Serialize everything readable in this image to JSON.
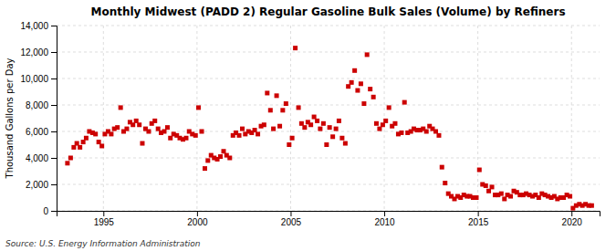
{
  "chart_data": {
    "type": "scatter",
    "title": "Monthly Midwest (PADD 2) Regular Gasoline Bulk Sales (Volume) by Refiners",
    "ylabel": "Thousand Gallons per Day",
    "source": "Source: U.S. Energy Information Administration",
    "color": "#cc0000",
    "marker": "square",
    "grid": true,
    "xlim": [
      1992.5,
      2021.5
    ],
    "xticks": [
      1995,
      2000,
      2005,
      2010,
      2015,
      2020
    ],
    "ylim": [
      0,
      14000
    ],
    "yticks": [
      0,
      {
        "value": 2000,
        "label": "2,000"
      },
      {
        "value": 4000,
        "label": "4,000"
      },
      {
        "value": 6000,
        "label": "6,000"
      },
      {
        "value": 8000,
        "label": "8,000"
      },
      {
        "value": 10000,
        "label": "10,000"
      },
      {
        "value": 12000,
        "label": "12,000"
      },
      {
        "value": 14000,
        "label": "14,000"
      }
    ],
    "x": [
      1993.08,
      1993.25,
      1993.42,
      1993.58,
      1993.75,
      1993.92,
      1994.08,
      1994.25,
      1994.42,
      1994.58,
      1994.75,
      1994.92,
      1995.08,
      1995.25,
      1995.42,
      1995.58,
      1995.75,
      1995.92,
      1996.08,
      1996.25,
      1996.42,
      1996.58,
      1996.75,
      1996.92,
      1997.08,
      1997.25,
      1997.42,
      1997.58,
      1997.75,
      1997.92,
      1998.08,
      1998.25,
      1998.42,
      1998.58,
      1998.75,
      1998.92,
      1999.08,
      1999.25,
      1999.42,
      1999.58,
      1999.75,
      1999.92,
      2000.08,
      2000.25,
      2000.42,
      2000.58,
      2000.75,
      2000.92,
      2001.08,
      2001.25,
      2001.42,
      2001.58,
      2001.75,
      2001.92,
      2002.08,
      2002.25,
      2002.42,
      2002.58,
      2002.75,
      2002.92,
      2003.08,
      2003.25,
      2003.42,
      2003.58,
      2003.75,
      2003.92,
      2004.08,
      2004.25,
      2004.42,
      2004.58,
      2004.75,
      2004.92,
      2005.08,
      2005.25,
      2005.42,
      2005.58,
      2005.75,
      2005.92,
      2006.08,
      2006.25,
      2006.42,
      2006.58,
      2006.75,
      2006.92,
      2007.08,
      2007.25,
      2007.42,
      2007.58,
      2007.75,
      2007.92,
      2008.08,
      2008.25,
      2008.42,
      2008.58,
      2008.75,
      2008.92,
      2009.08,
      2009.25,
      2009.42,
      2009.58,
      2009.75,
      2009.92,
      2010.08,
      2010.25,
      2010.42,
      2010.58,
      2010.75,
      2010.92,
      2011.08,
      2011.25,
      2011.42,
      2011.58,
      2011.75,
      2011.92,
      2012.08,
      2012.25,
      2012.42,
      2012.58,
      2012.75,
      2012.92,
      2013.08,
      2013.25,
      2013.42,
      2013.58,
      2013.75,
      2013.92,
      2014.08,
      2014.25,
      2014.42,
      2014.58,
      2014.75,
      2014.92,
      2015.08,
      2015.25,
      2015.42,
      2015.58,
      2015.75,
      2015.92,
      2016.08,
      2016.25,
      2016.42,
      2016.58,
      2016.75,
      2016.92,
      2017.08,
      2017.25,
      2017.42,
      2017.58,
      2017.75,
      2017.92,
      2018.08,
      2018.25,
      2018.42,
      2018.58,
      2018.75,
      2018.92,
      2019.08,
      2019.25,
      2019.42,
      2019.58,
      2019.75,
      2019.92,
      2020.08,
      2020.25,
      2020.42,
      2020.58,
      2020.75,
      2020.92,
      2021.08
    ],
    "values": [
      3600,
      4000,
      4800,
      5100,
      4800,
      5200,
      5500,
      6000,
      5900,
      5800,
      5200,
      4900,
      5800,
      6000,
      5800,
      6200,
      6300,
      7800,
      6000,
      6200,
      6700,
      6500,
      6800,
      6500,
      5100,
      6200,
      6000,
      6600,
      6800,
      6200,
      5900,
      6000,
      6300,
      5500,
      5800,
      5700,
      5500,
      5400,
      5500,
      6000,
      5800,
      5700,
      7800,
      6000,
      3200,
      3800,
      4200,
      4000,
      3900,
      4100,
      4500,
      4200,
      4000,
      5700,
      5900,
      5700,
      6200,
      5800,
      6000,
      5900,
      6100,
      5800,
      6400,
      6500,
      8900,
      7600,
      6200,
      8700,
      6400,
      7600,
      8100,
      5000,
      5500,
      12300,
      7800,
      6600,
      6300,
      6700,
      6500,
      7100,
      6800,
      6200,
      6600,
      5000,
      6300,
      5600,
      6200,
      6800,
      5500,
      5100,
      9400,
      9700,
      10600,
      9100,
      9600,
      8100,
      11800,
      9200,
      8600,
      6600,
      6200,
      6500,
      6800,
      7800,
      6400,
      6600,
      5800,
      5900,
      8200,
      5900,
      6000,
      6200,
      6100,
      6100,
      6200,
      6000,
      6400,
      6200,
      6000,
      5700,
      3300,
      2100,
      1300,
      1100,
      900,
      1100,
      1000,
      1200,
      1100,
      1100,
      1000,
      1000,
      3100,
      2000,
      1900,
      1500,
      1800,
      1200,
      1200,
      1300,
      900,
      1200,
      1100,
      1500,
      1400,
      1200,
      1200,
      1300,
      1200,
      1100,
      1200,
      1000,
      1300,
      1200,
      1100,
      1000,
      1100,
      900,
      1000,
      1000,
      1200,
      1100,
      200,
      400,
      500,
      400,
      500,
      400,
      400
    ]
  }
}
